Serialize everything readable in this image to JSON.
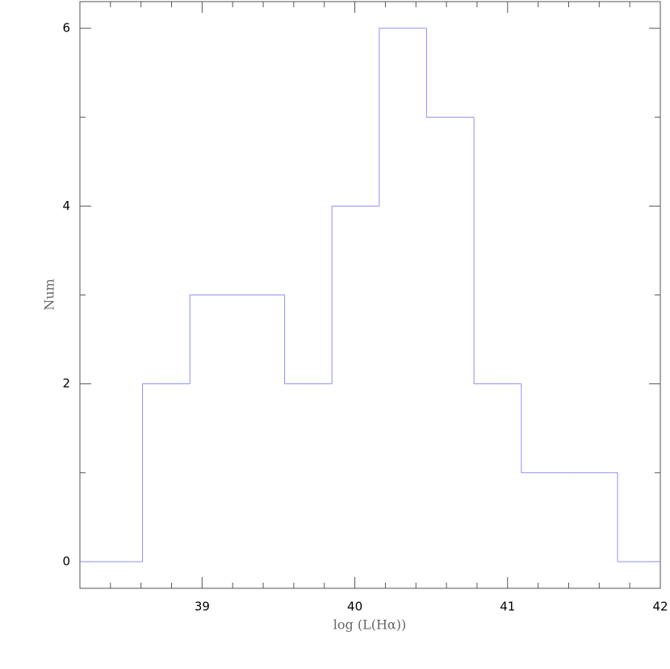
{
  "chart_data": {
    "type": "histogram",
    "xlabel": "log (L(Hα))",
    "ylabel": "Num",
    "bins": [
      38.61,
      38.92,
      39.23,
      39.54,
      39.85,
      40.16,
      40.47,
      40.78,
      41.09,
      41.4,
      41.72
    ],
    "values": [
      2,
      3,
      3,
      2,
      4,
      6,
      5,
      2,
      1,
      1
    ],
    "color": "#8f8fff",
    "xlim": [
      38.2,
      42.0
    ],
    "ylim": [
      -0.3,
      6.3
    ],
    "xticks": [
      39,
      40,
      41,
      42
    ],
    "yticks": [
      0,
      2,
      4,
      6
    ],
    "xminorticks": [
      38.4,
      38.6,
      38.8,
      39.2,
      39.4,
      39.6,
      39.8,
      40.2,
      40.4,
      40.6,
      40.8,
      41.2,
      41.4,
      41.6,
      41.8
    ],
    "yminorticks": [
      1,
      3,
      5
    ]
  }
}
